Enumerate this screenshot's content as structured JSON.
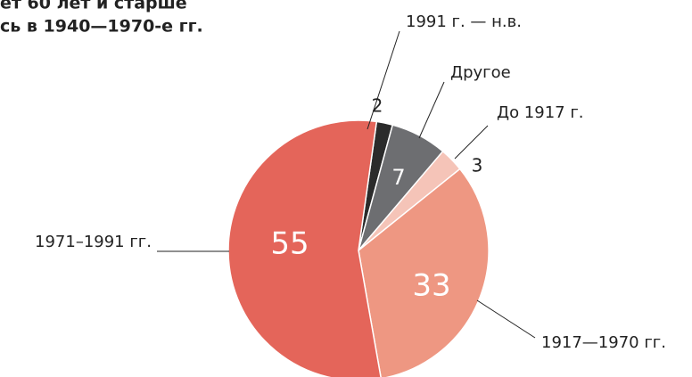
{
  "chart_data": {
    "type": "pie",
    "title_lines": [
      "ет 60 лет и старше",
      "сь в 1940—1970-е гг."
    ],
    "categories": [
      "1991 г. — н.в.",
      "Другое",
      "До 1917 г.",
      "1917—1970 гг.",
      "1971–1991 гг."
    ],
    "values": [
      2,
      7,
      3,
      33,
      55
    ],
    "colors": [
      "#2b2b2b",
      "#6d6e71",
      "#f5c4b8",
      "#ee9782",
      "#e4655a"
    ]
  }
}
